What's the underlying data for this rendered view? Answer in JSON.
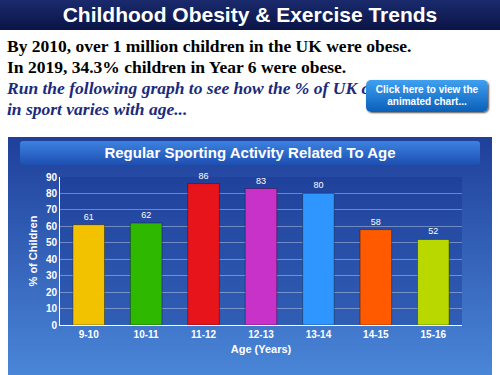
{
  "slide": {
    "title": "Childhood Obesity & Exercise Trends",
    "lines": [
      "By 2010, over 1 million children in the UK were obese.",
      "In 2019, 34.3% children in Year 6 were obese."
    ],
    "prompt": "Run the following graph to see how the % of UK children involved in sport varies with age...",
    "button": "Click here to view the animated chart..."
  },
  "chart_data": {
    "type": "bar",
    "title": "Regular Sporting Activity Related To Age",
    "x_label": "Age (Years)",
    "y_label": "% of Children",
    "categories": [
      "9-10",
      "10-11",
      "11-12",
      "12-13",
      "13-14",
      "14-15",
      "15-16"
    ],
    "values": [
      61,
      62,
      86,
      83,
      80,
      58,
      52
    ],
    "colors": [
      "#f2c200",
      "#2fb800",
      "#e8141c",
      "#c832c8",
      "#2f96ff",
      "#ff5a00",
      "#b8d800"
    ],
    "ylim": [
      0,
      90
    ],
    "yticks": [
      0,
      10,
      20,
      30,
      40,
      50,
      60,
      70,
      80,
      90
    ],
    "grid": true,
    "data_labels": true
  }
}
